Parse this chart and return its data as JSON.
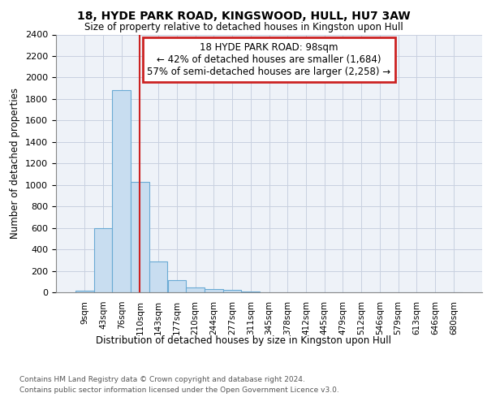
{
  "title": "18, HYDE PARK ROAD, KINGSWOOD, HULL, HU7 3AW",
  "subtitle": "Size of property relative to detached houses in Kingston upon Hull",
  "xlabel_bottom": "Distribution of detached houses by size in Kingston upon Hull",
  "ylabel": "Number of detached properties",
  "categories": [
    "9sqm",
    "43sqm",
    "76sqm",
    "110sqm",
    "143sqm",
    "177sqm",
    "210sqm",
    "244sqm",
    "277sqm",
    "311sqm",
    "345sqm",
    "378sqm",
    "412sqm",
    "445sqm",
    "479sqm",
    "512sqm",
    "546sqm",
    "579sqm",
    "613sqm",
    "646sqm",
    "680sqm"
  ],
  "values": [
    15,
    600,
    1880,
    1030,
    285,
    110,
    45,
    30,
    20,
    5,
    2,
    0,
    0,
    0,
    0,
    0,
    0,
    0,
    0,
    0,
    0
  ],
  "bar_color": "#c8ddf0",
  "bar_edge_color": "#6aaad4",
  "vline_x": 2.97,
  "vline_color": "#cc2222",
  "annotation_box_text": "18 HYDE PARK ROAD: 98sqm\n← 42% of detached houses are smaller (1,684)\n57% of semi-detached houses are larger (2,258) →",
  "ylim": [
    0,
    2400
  ],
  "yticks": [
    0,
    200,
    400,
    600,
    800,
    1000,
    1200,
    1400,
    1600,
    1800,
    2000,
    2200,
    2400
  ],
  "grid_color": "#c8d0e0",
  "background_color": "#eef2f8",
  "footer_line1": "Contains HM Land Registry data © Crown copyright and database right 2024.",
  "footer_line2": "Contains public sector information licensed under the Open Government Licence v3.0."
}
